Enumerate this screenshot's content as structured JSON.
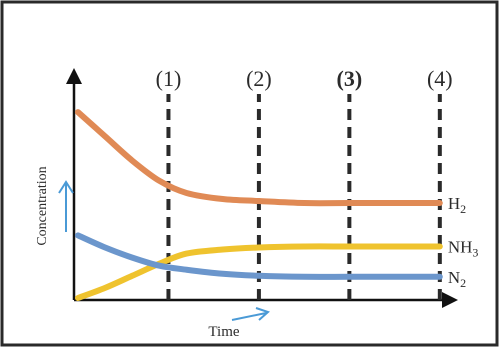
{
  "chart_data": {
    "type": "line",
    "xlabel": "Time",
    "ylabel": "Concentration",
    "xlim": [
      0,
      4.4
    ],
    "ylim": [
      0,
      100
    ],
    "markers": [
      {
        "label": "(1)",
        "x": 1.0,
        "bold": false
      },
      {
        "label": "(2)",
        "x": 2.0,
        "bold": false
      },
      {
        "label": "(3)",
        "x": 3.0,
        "bold": true
      },
      {
        "label": "(4)",
        "x": 4.0,
        "bold": false
      }
    ],
    "series": [
      {
        "name": "H",
        "sub": "2",
        "color": "#e08a55",
        "x": [
          0,
          0.3,
          0.6,
          0.9,
          1.2,
          1.6,
          2.0,
          2.5,
          3.0,
          3.5,
          4.0
        ],
        "y": [
          92,
          80,
          68,
          58,
          52,
          49,
          48,
          47,
          47,
          47,
          47
        ]
      },
      {
        "name": "NH",
        "sub": "3",
        "color": "#efc32e",
        "x": [
          0,
          0.3,
          0.6,
          0.9,
          1.2,
          1.6,
          2.0,
          2.5,
          3.0,
          3.5,
          4.0
        ],
        "y": [
          0,
          5,
          11,
          17,
          22,
          24,
          25,
          25.5,
          25.5,
          25.5,
          25.5
        ]
      },
      {
        "name": "N",
        "sub": "2",
        "color": "#6b96cc",
        "x": [
          0,
          0.3,
          0.6,
          0.9,
          1.2,
          1.6,
          2.0,
          2.5,
          3.0,
          3.5,
          4.0
        ],
        "y": [
          31,
          25,
          20,
          16,
          14,
          12,
          11,
          10.5,
          10.5,
          10.5,
          10.5
        ]
      }
    ]
  }
}
